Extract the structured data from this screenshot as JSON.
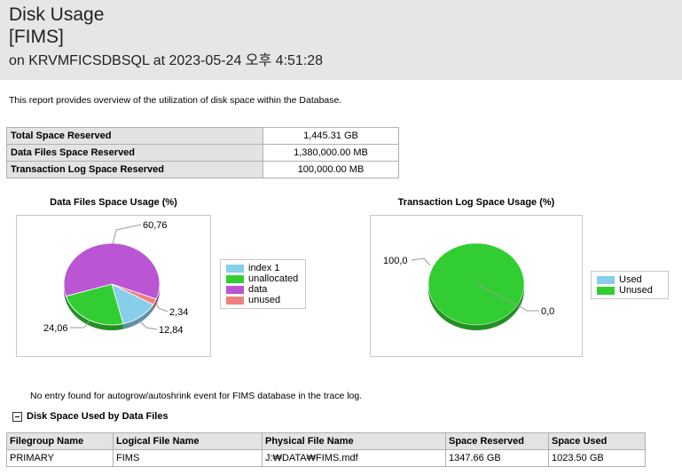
{
  "header": {
    "title": "Disk Usage",
    "database": "[FIMS]",
    "subtitle": "on KRVMFICSDBSQL at 2023-05-24 오후 4:51:28"
  },
  "description": "This report provides overview of the utilization of disk space within the Database.",
  "summary": [
    {
      "label": "Total Space Reserved",
      "value": "1,445.31 GB"
    },
    {
      "label": "Data Files Space Reserved",
      "value": "1,380,000.00 MB"
    },
    {
      "label": "Transaction Log Space Reserved",
      "value": "100,000.00 MB"
    }
  ],
  "colors": {
    "index": "#87ceeb",
    "unallocated": "#32cd32",
    "data": "#ba55d3",
    "unused": "#f08080",
    "used": "#87ceeb"
  },
  "chart_data": [
    {
      "type": "pie",
      "title": "Data Files Space Usage (%)",
      "legend": [
        "index 1",
        "unallocated",
        "data",
        "unused"
      ],
      "values": [
        12.84,
        24.06,
        60.76,
        2.34
      ],
      "labels": [
        "12,84",
        "24,06",
        "60,76",
        "2,34"
      ],
      "legend_position": "right"
    },
    {
      "type": "pie",
      "title": "Transaction Log Space Usage (%)",
      "legend": [
        "Used",
        "Unused"
      ],
      "values": [
        0.0,
        100.0
      ],
      "labels": [
        "0,0",
        "100,0"
      ],
      "legend_position": "right"
    }
  ],
  "note": "No entry found for autogrow/autoshrink event for FIMS database in the trace log.",
  "section_title": "Disk Space Used by Data Files",
  "files_table": {
    "headers": [
      "Filegroup Name",
      "Logical File Name",
      "Physical File Name",
      "Space Reserved",
      "Space Used"
    ],
    "rows": [
      [
        "PRIMARY",
        "FIMS",
        "J:₩DATA₩FIMS.mdf",
        "1347.66 GB",
        "1023.50 GB"
      ]
    ]
  }
}
